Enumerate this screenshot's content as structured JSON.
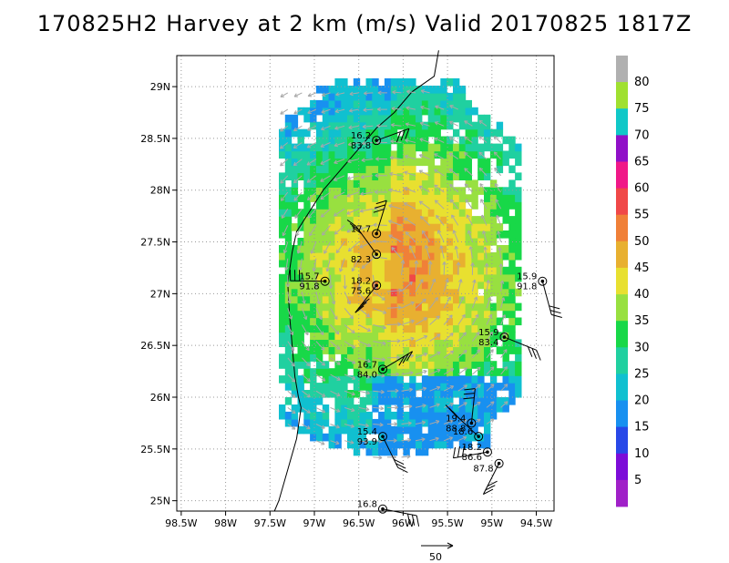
{
  "title": "170825H2 Harvey at 2 km (m/s) Valid 20170825 1817Z",
  "colors": {
    "scale": [
      "#a020c8",
      "#7c0cd8",
      "#2848e8",
      "#1890f0",
      "#10c0d0",
      "#20d0a0",
      "#18d848",
      "#98e040",
      "#e8e030",
      "#e8b030",
      "#f08038",
      "#f04848",
      "#f01888",
      "#9010c8",
      "#10c8c8",
      "#a0e030",
      "#b0b0b0"
    ]
  },
  "reference_vector": {
    "label": "50"
  },
  "chart_data": {
    "type": "heatmap",
    "title": "170825H2 Harvey at 2 km (m/s) Valid 20170825 1817Z",
    "x_ticks": [
      "98.5W",
      "98W",
      "97.5W",
      "97W",
      "96.5W",
      "96W",
      "95.5W",
      "95W",
      "94.5W"
    ],
    "y_ticks": [
      "29N",
      "28.5N",
      "28N",
      "27.5N",
      "27N",
      "26.5N",
      "26N",
      "25.5N",
      "25N"
    ],
    "xlim": [
      -98.55,
      -94.3
    ],
    "ylim": [
      24.9,
      29.3
    ],
    "colorbar": {
      "levels": [
        "5",
        "10",
        "15",
        "20",
        "25",
        "30",
        "35",
        "40",
        "45",
        "50",
        "55",
        "60",
        "65",
        "70",
        "75",
        "80"
      ]
    },
    "storm_center": {
      "lon": -96.2,
      "lat": 27.2
    },
    "observations": [
      {
        "lon": -96.3,
        "lat": 28.48,
        "temp": "16.2",
        "pres": "83.8"
      },
      {
        "lon": -96.3,
        "lat": 27.58,
        "temp": "17.7",
        "pres": ""
      },
      {
        "lon": -96.3,
        "lat": 27.38,
        "temp": "",
        "pres": "82.3"
      },
      {
        "lon": -96.88,
        "lat": 27.12,
        "temp": "15.7",
        "pres": "91.8"
      },
      {
        "lon": -96.3,
        "lat": 27.08,
        "temp": "18.2",
        "pres": "75.6"
      },
      {
        "lon": -94.43,
        "lat": 27.12,
        "temp": "15.9",
        "pres": "91.8"
      },
      {
        "lon": -94.86,
        "lat": 26.58,
        "temp": "15.9",
        "pres": "83.4"
      },
      {
        "lon": -96.23,
        "lat": 26.27,
        "temp": "16.7",
        "pres": "84.0"
      },
      {
        "lon": -95.23,
        "lat": 25.75,
        "temp": "19.4",
        "pres": "88.8"
      },
      {
        "lon": -95.15,
        "lat": 25.62,
        "temp": "18.6",
        "pres": ""
      },
      {
        "lon": -95.05,
        "lat": 25.47,
        "temp": "18.2",
        "pres": "86.6"
      },
      {
        "lon": -94.92,
        "lat": 25.36,
        "temp": "",
        "pres": "87.8"
      },
      {
        "lon": -96.23,
        "lat": 25.62,
        "temp": "15.4",
        "pres": "93.9"
      },
      {
        "lon": -96.23,
        "lat": 24.92,
        "temp": "16.8",
        "pres": ""
      }
    ]
  }
}
